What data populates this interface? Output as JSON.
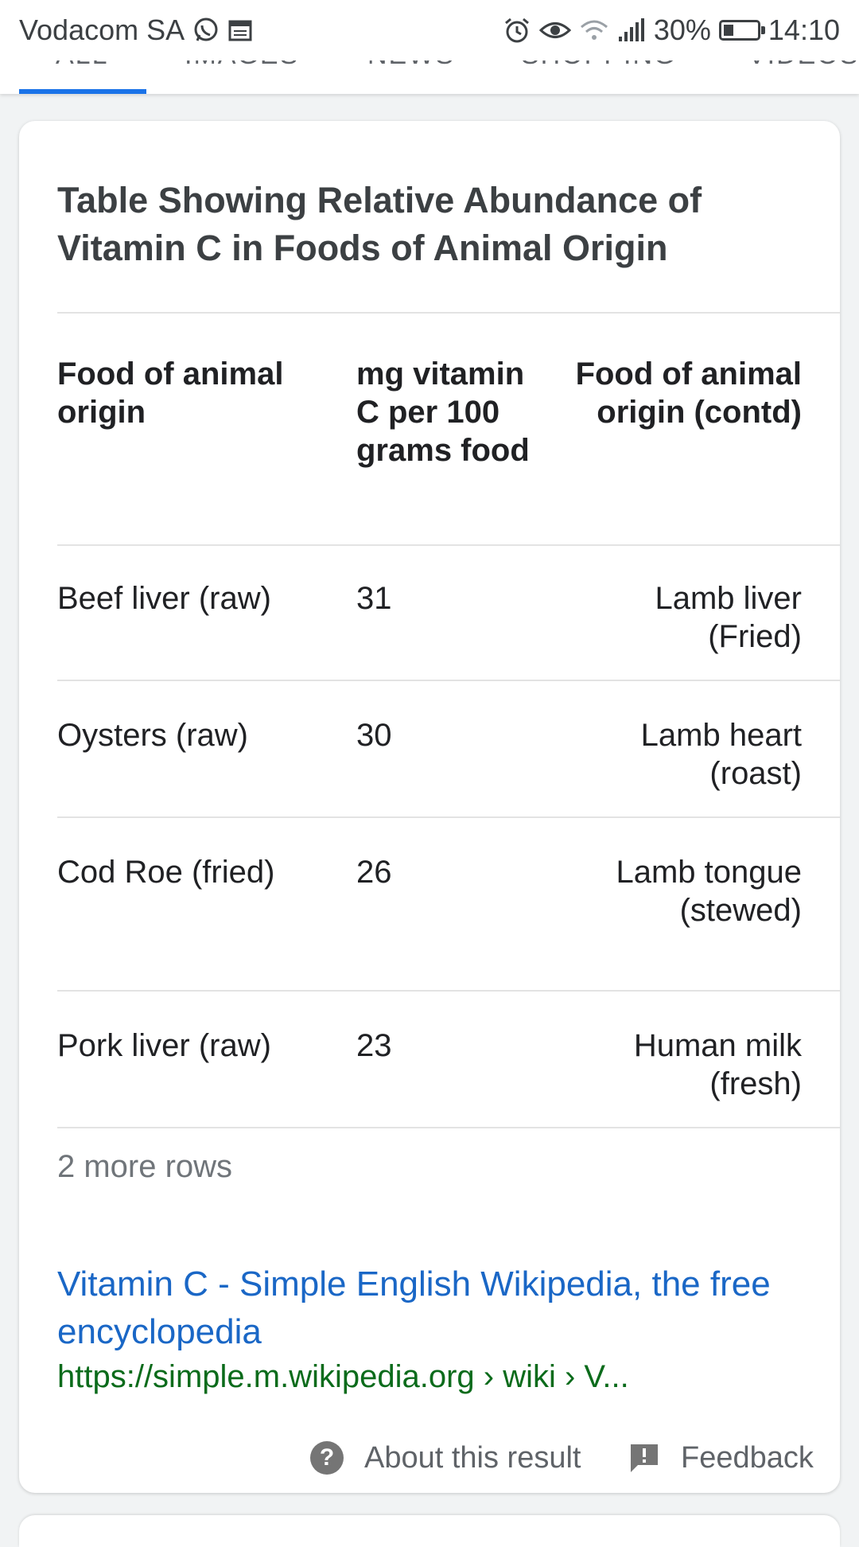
{
  "status_bar": {
    "carrier": "Vodacom SA",
    "battery": "30%",
    "battery_level": 0.3,
    "time": "14:10",
    "icons": [
      "whatsapp-icon",
      "calendar-icon",
      "alarm-icon",
      "eye-icon",
      "wifi-icon",
      "signal-icon",
      "battery-icon"
    ]
  },
  "search_tabs": {
    "labels": [
      "ALL",
      "IMAGES",
      "NEWS",
      "SHOPPING",
      "VIDEOS"
    ],
    "active": "ALL",
    "accent": "#1a73e8"
  },
  "result": {
    "table_title": "Table Showing Relative Abundance of Vitamin C in Foods of Animal Origin",
    "columns": [
      "Food of animal origin",
      "mg vitamin C per 100 grams food",
      "Food of animal origin (contd)"
    ],
    "rows": [
      [
        "Beef liver (raw)",
        "31",
        "Lamb liver (Fried)"
      ],
      [
        "Oysters (raw)",
        "30",
        "Lamb heart (roast)"
      ],
      [
        "Cod Roe (fried)",
        "26",
        "Lamb tongue (stewed)"
      ],
      [
        "Pork liver (raw)",
        "23",
        "Human milk (fresh)"
      ]
    ],
    "more_rows": "2 more rows",
    "link_title": "Vitamin C - Simple English Wikipedia, the free encyclopedia",
    "url": "https://simple.m.wikipedia.org › wiki › V...",
    "about": "About this result",
    "feedback": "Feedback"
  }
}
